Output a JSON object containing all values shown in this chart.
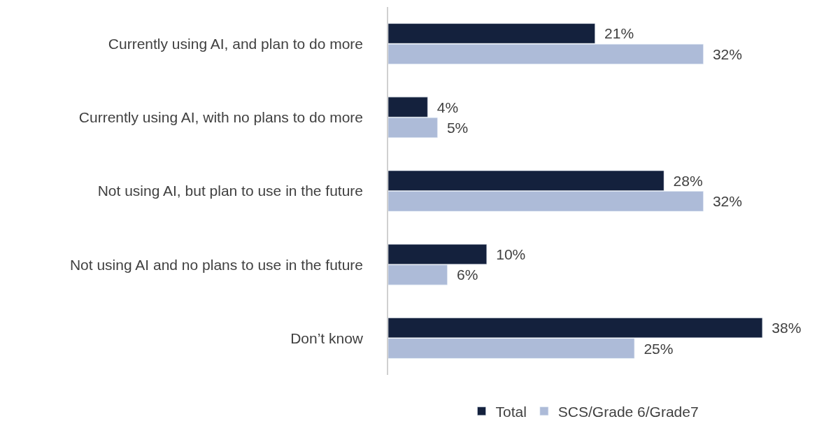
{
  "chart_data": {
    "type": "bar",
    "orientation": "horizontal",
    "categories": [
      "Currently using AI, and plan to do more",
      "Currently using AI, with no plans to do more",
      "Not using AI, but plan to use in the future",
      "Not using AI and no plans to use in the future",
      "Don’t know"
    ],
    "series": [
      {
        "name": "Total",
        "color": "#14213d",
        "values": [
          21,
          4,
          28,
          10,
          38
        ],
        "value_labels": [
          "21%",
          "4%",
          "28%",
          "10%",
          "38%"
        ]
      },
      {
        "name": "SCS/Grade 6/Grade7",
        "color": "#adbbd8",
        "values": [
          32,
          5,
          32,
          6,
          25
        ],
        "value_labels": [
          "32%",
          "5%",
          "32%",
          "6%",
          "25%"
        ]
      }
    ],
    "legend": "bottom"
  }
}
